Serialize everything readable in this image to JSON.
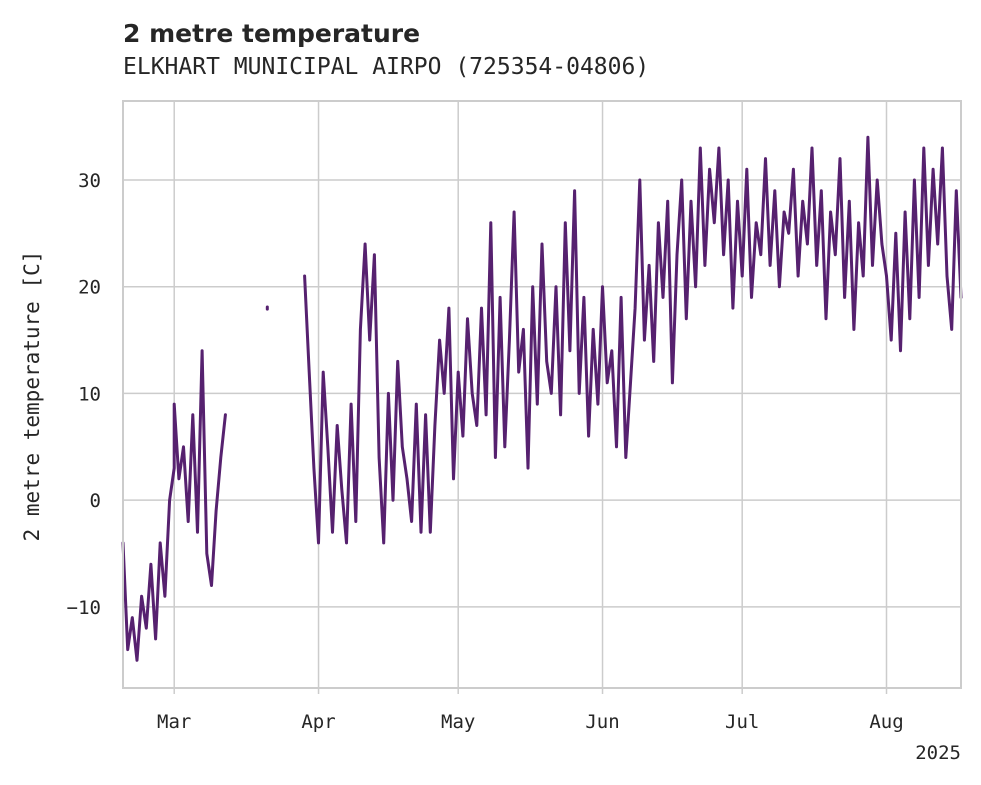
{
  "chart_data": {
    "type": "line",
    "title": "2 metre temperature",
    "subtitle": "ELKHART MUNICIPAL AIRPO (725354-04806)",
    "xlabel": "",
    "ylabel": "2 metre temperature [C]",
    "x_year_label": "2025",
    "x_ticks": [
      {
        "date": "2025-03-01",
        "label": "Mar"
      },
      {
        "date": "2025-04-01",
        "label": "Apr"
      },
      {
        "date": "2025-05-01",
        "label": "May"
      },
      {
        "date": "2025-06-01",
        "label": "Jun"
      },
      {
        "date": "2025-07-01",
        "label": "Jul"
      },
      {
        "date": "2025-08-01",
        "label": "Aug"
      }
    ],
    "y_ticks": [
      {
        "value": -10,
        "label": "−10"
      },
      {
        "value": 0,
        "label": "0"
      },
      {
        "value": 10,
        "label": "10"
      },
      {
        "value": 20,
        "label": "20"
      },
      {
        "value": 30,
        "label": "30"
      }
    ],
    "xlim": [
      "2025-02-18",
      "2025-08-17"
    ],
    "ylim": [
      -17.6,
      37.4
    ],
    "grid": true,
    "line_color": "#56216f",
    "series": [
      {
        "name": "",
        "segments": [
          {
            "points": [
              [
                "2025-02-18",
                -4
              ],
              [
                "2025-02-19",
                -14
              ],
              [
                "2025-02-20",
                -11
              ],
              [
                "2025-02-21",
                -15
              ],
              [
                "2025-02-22",
                -9
              ],
              [
                "2025-02-23",
                -12
              ],
              [
                "2025-02-24",
                -6
              ],
              [
                "2025-02-25",
                -13
              ],
              [
                "2025-02-26",
                -4
              ],
              [
                "2025-02-27",
                -9
              ],
              [
                "2025-02-28",
                0
              ],
              [
                "2025-02-29",
                3
              ],
              [
                "2025-03-01",
                9
              ],
              [
                "2025-03-02",
                2
              ],
              [
                "2025-03-03",
                5
              ],
              [
                "2025-03-04",
                -2
              ],
              [
                "2025-03-05",
                8
              ],
              [
                "2025-03-06",
                -3
              ],
              [
                "2025-03-07",
                14
              ],
              [
                "2025-03-08",
                -5
              ],
              [
                "2025-03-09",
                -8
              ],
              [
                "2025-03-10",
                -1
              ],
              [
                "2025-03-11",
                4
              ],
              [
                "2025-03-12",
                8
              ]
            ]
          },
          {
            "points": [
              [
                "2025-03-21",
                17.9
              ],
              [
                "2025-03-21",
                18.1
              ]
            ]
          },
          {
            "points": [
              [
                "2025-03-29",
                21
              ],
              [
                "2025-03-30",
                12
              ],
              [
                "2025-03-31",
                3
              ],
              [
                "2025-04-01",
                -4
              ],
              [
                "2025-04-02",
                12
              ],
              [
                "2025-04-03",
                5
              ],
              [
                "2025-04-04",
                -3
              ],
              [
                "2025-04-05",
                7
              ],
              [
                "2025-04-06",
                1
              ],
              [
                "2025-04-07",
                -4
              ],
              [
                "2025-04-08",
                9
              ],
              [
                "2025-04-09",
                -2
              ],
              [
                "2025-04-10",
                16
              ],
              [
                "2025-04-11",
                24
              ],
              [
                "2025-04-12",
                15
              ],
              [
                "2025-04-13",
                23
              ],
              [
                "2025-04-14",
                4
              ],
              [
                "2025-04-15",
                -4
              ],
              [
                "2025-04-16",
                10
              ],
              [
                "2025-04-17",
                0
              ],
              [
                "2025-04-18",
                13
              ],
              [
                "2025-04-19",
                5
              ],
              [
                "2025-04-20",
                2
              ],
              [
                "2025-04-21",
                -2
              ],
              [
                "2025-04-22",
                9
              ],
              [
                "2025-04-23",
                -3
              ],
              [
                "2025-04-24",
                8
              ],
              [
                "2025-04-25",
                -3
              ],
              [
                "2025-04-26",
                7
              ],
              [
                "2025-04-27",
                15
              ],
              [
                "2025-04-28",
                10
              ],
              [
                "2025-04-29",
                18
              ],
              [
                "2025-04-30",
                2
              ],
              [
                "2025-05-01",
                12
              ],
              [
                "2025-05-02",
                6
              ],
              [
                "2025-05-03",
                17
              ],
              [
                "2025-05-04",
                10
              ],
              [
                "2025-05-05",
                7
              ],
              [
                "2025-05-06",
                18
              ],
              [
                "2025-05-07",
                8
              ],
              [
                "2025-05-08",
                26
              ],
              [
                "2025-05-09",
                4
              ],
              [
                "2025-05-10",
                19
              ],
              [
                "2025-05-11",
                5
              ],
              [
                "2025-05-12",
                15
              ],
              [
                "2025-05-13",
                27
              ],
              [
                "2025-05-14",
                12
              ],
              [
                "2025-05-15",
                16
              ],
              [
                "2025-05-16",
                3
              ],
              [
                "2025-05-17",
                20
              ],
              [
                "2025-05-18",
                9
              ],
              [
                "2025-05-19",
                24
              ],
              [
                "2025-05-20",
                13
              ],
              [
                "2025-05-21",
                10
              ],
              [
                "2025-05-22",
                20
              ],
              [
                "2025-05-23",
                8
              ],
              [
                "2025-05-24",
                26
              ],
              [
                "2025-05-25",
                14
              ],
              [
                "2025-05-26",
                29
              ],
              [
                "2025-05-27",
                10
              ],
              [
                "2025-05-28",
                19
              ],
              [
                "2025-05-29",
                6
              ],
              [
                "2025-05-30",
                16
              ],
              [
                "2025-05-31",
                9
              ],
              [
                "2025-06-01",
                20
              ],
              [
                "2025-06-02",
                11
              ],
              [
                "2025-06-03",
                14
              ],
              [
                "2025-06-04",
                5
              ],
              [
                "2025-06-05",
                19
              ],
              [
                "2025-06-06",
                4
              ],
              [
                "2025-06-07",
                11
              ],
              [
                "2025-06-08",
                18
              ],
              [
                "2025-06-09",
                30
              ],
              [
                "2025-06-10",
                15
              ],
              [
                "2025-06-11",
                22
              ],
              [
                "2025-06-12",
                13
              ],
              [
                "2025-06-13",
                26
              ],
              [
                "2025-06-14",
                19
              ],
              [
                "2025-06-15",
                28
              ],
              [
                "2025-06-16",
                11
              ],
              [
                "2025-06-17",
                23
              ],
              [
                "2025-06-18",
                30
              ],
              [
                "2025-06-19",
                17
              ],
              [
                "2025-06-20",
                28
              ],
              [
                "2025-06-21",
                20
              ],
              [
                "2025-06-22",
                33
              ],
              [
                "2025-06-23",
                22
              ],
              [
                "2025-06-24",
                31
              ],
              [
                "2025-06-25",
                26
              ],
              [
                "2025-06-26",
                33
              ],
              [
                "2025-06-27",
                23
              ],
              [
                "2025-06-28",
                30
              ],
              [
                "2025-06-29",
                18
              ],
              [
                "2025-06-30",
                28
              ],
              [
                "2025-07-01",
                21
              ],
              [
                "2025-07-02",
                31
              ],
              [
                "2025-07-03",
                19
              ],
              [
                "2025-07-04",
                26
              ],
              [
                "2025-07-05",
                23
              ],
              [
                "2025-07-06",
                32
              ],
              [
                "2025-07-07",
                22
              ],
              [
                "2025-07-08",
                29
              ],
              [
                "2025-07-09",
                20
              ],
              [
                "2025-07-10",
                27
              ],
              [
                "2025-07-11",
                25
              ],
              [
                "2025-07-12",
                31
              ],
              [
                "2025-07-13",
                21
              ],
              [
                "2025-07-14",
                28
              ],
              [
                "2025-07-15",
                24
              ],
              [
                "2025-07-16",
                33
              ],
              [
                "2025-07-17",
                22
              ],
              [
                "2025-07-18",
                29
              ],
              [
                "2025-07-19",
                17
              ],
              [
                "2025-07-20",
                27
              ],
              [
                "2025-07-21",
                23
              ],
              [
                "2025-07-22",
                32
              ],
              [
                "2025-07-23",
                19
              ],
              [
                "2025-07-24",
                28
              ],
              [
                "2025-07-25",
                16
              ],
              [
                "2025-07-26",
                26
              ],
              [
                "2025-07-27",
                21
              ],
              [
                "2025-07-28",
                34
              ],
              [
                "2025-07-29",
                22
              ],
              [
                "2025-07-30",
                30
              ],
              [
                "2025-07-31",
                24
              ],
              [
                "2025-08-01",
                21
              ],
              [
                "2025-08-02",
                15
              ],
              [
                "2025-08-03",
                25
              ],
              [
                "2025-08-04",
                14
              ],
              [
                "2025-08-05",
                27
              ],
              [
                "2025-08-06",
                17
              ],
              [
                "2025-08-07",
                30
              ],
              [
                "2025-08-08",
                19
              ],
              [
                "2025-08-09",
                33
              ],
              [
                "2025-08-10",
                22
              ],
              [
                "2025-08-11",
                31
              ],
              [
                "2025-08-12",
                24
              ],
              [
                "2025-08-13",
                33
              ],
              [
                "2025-08-14",
                21
              ],
              [
                "2025-08-15",
                16
              ],
              [
                "2025-08-16",
                29
              ],
              [
                "2025-08-17",
                19
              ]
            ]
          }
        ]
      }
    ]
  }
}
